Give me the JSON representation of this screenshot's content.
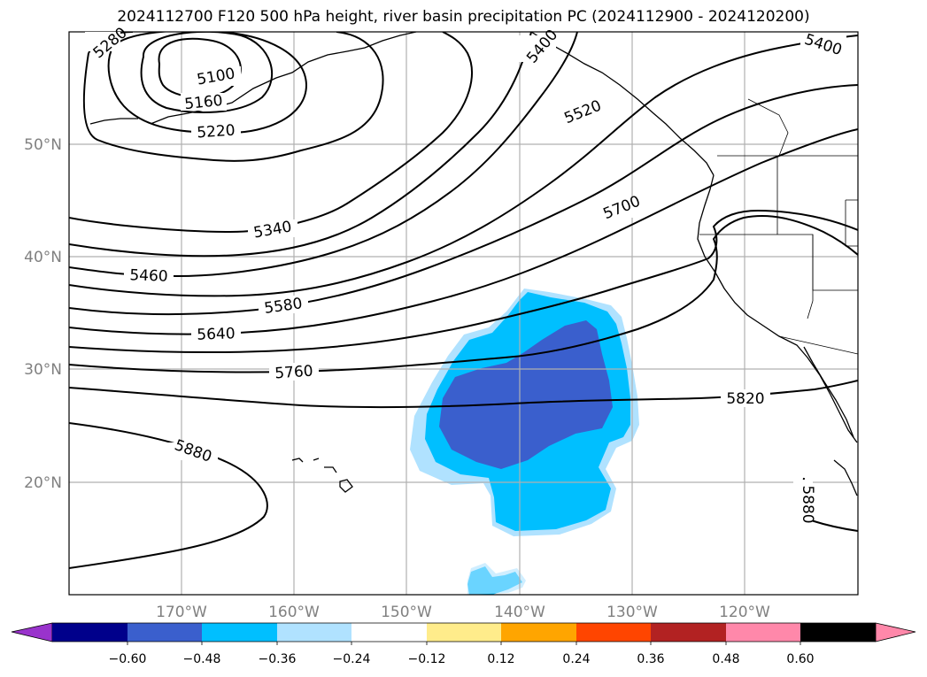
{
  "title": "2024112700 F120 500 hPa height, river basin precipitation PC (2024112900 - 2024120200)",
  "map": {
    "lat_labels": [
      "50°N",
      "40°N",
      "30°N",
      "20°N"
    ],
    "lon_labels": [
      "170°W",
      "160°W",
      "150°W",
      "140°W",
      "130°W",
      "120°W"
    ],
    "contour_labels": [
      "5100",
      "5160",
      "5220",
      "5340",
      "5460",
      "5580",
      "5640",
      "5760",
      "5820",
      "5880",
      "5880",
      "5400",
      "5400",
      "5520",
      "5700",
      "5280"
    ]
  },
  "colorbar": {
    "ticks": [
      "−0.60",
      "−0.48",
      "−0.36",
      "−0.24",
      "−0.12",
      "0.12",
      "0.24",
      "0.36",
      "0.48",
      "0.60"
    ],
    "colors": [
      "#9933cc",
      "#00008b",
      "#3a5fcd",
      "#00bfff",
      "#b0e2ff",
      "#ffffff",
      "#ffec8b",
      "#ffa500",
      "#ff4500",
      "#b22222",
      "#ff88aa"
    ]
  }
}
